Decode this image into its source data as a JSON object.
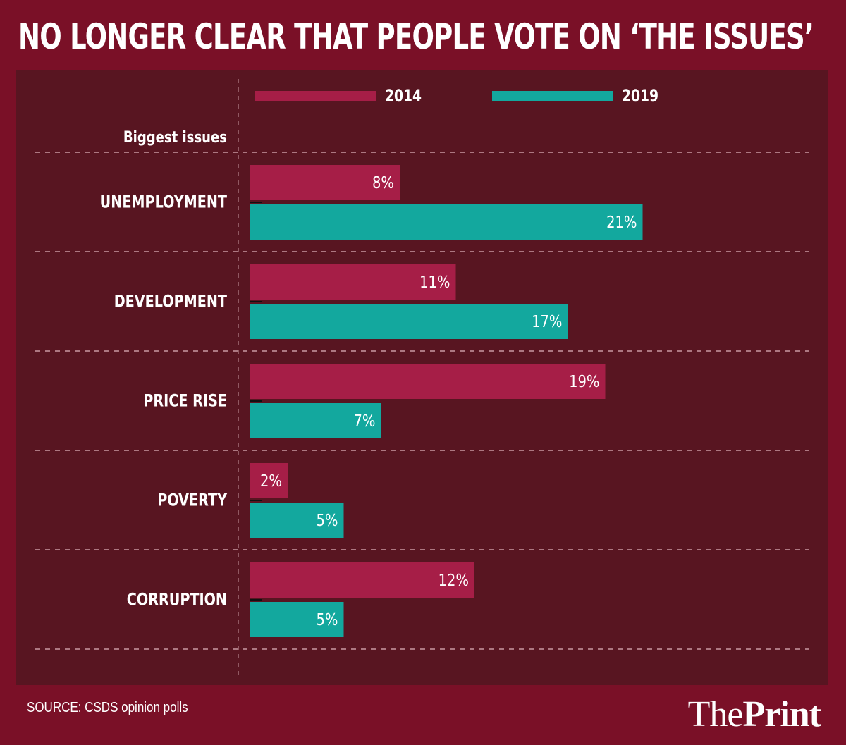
{
  "title": "NO LONGER CLEAR THAT PEOPLE VOTE ON ‘THE ISSUES’",
  "source": "SOURCE: CSDS opinion polls",
  "logo": {
    "part1": "The",
    "part2": "Print"
  },
  "colors": {
    "background": "#7a1027",
    "panel": "#581521",
    "series_2014": "#a61e47",
    "series_2019": "#13a89e",
    "grid": "#c99aa3"
  },
  "chart_data": {
    "type": "bar",
    "orientation": "horizontal",
    "title": "NO LONGER CLEAR THAT PEOPLE VOTE ON ‘THE ISSUES’",
    "category_header": "Biggest issues",
    "categories": [
      "UNEMPLOYMENT",
      "DEVELOPMENT",
      "PRICE RISE",
      "POVERTY",
      "CORRUPTION"
    ],
    "series": [
      {
        "name": "2014",
        "values": [
          8,
          11,
          19,
          2,
          12
        ],
        "labels": [
          "8%",
          "11%",
          "19%",
          "2%",
          "12%"
        ]
      },
      {
        "name": "2019",
        "values": [
          21,
          17,
          7,
          5,
          5
        ],
        "labels": [
          "21%",
          "17%",
          "7%",
          "5%",
          "5%"
        ]
      }
    ],
    "unit": "%",
    "xlim": [
      0,
      30
    ],
    "legend": "top",
    "grid": "dashed row separators",
    "xlabel": "",
    "ylabel": ""
  }
}
